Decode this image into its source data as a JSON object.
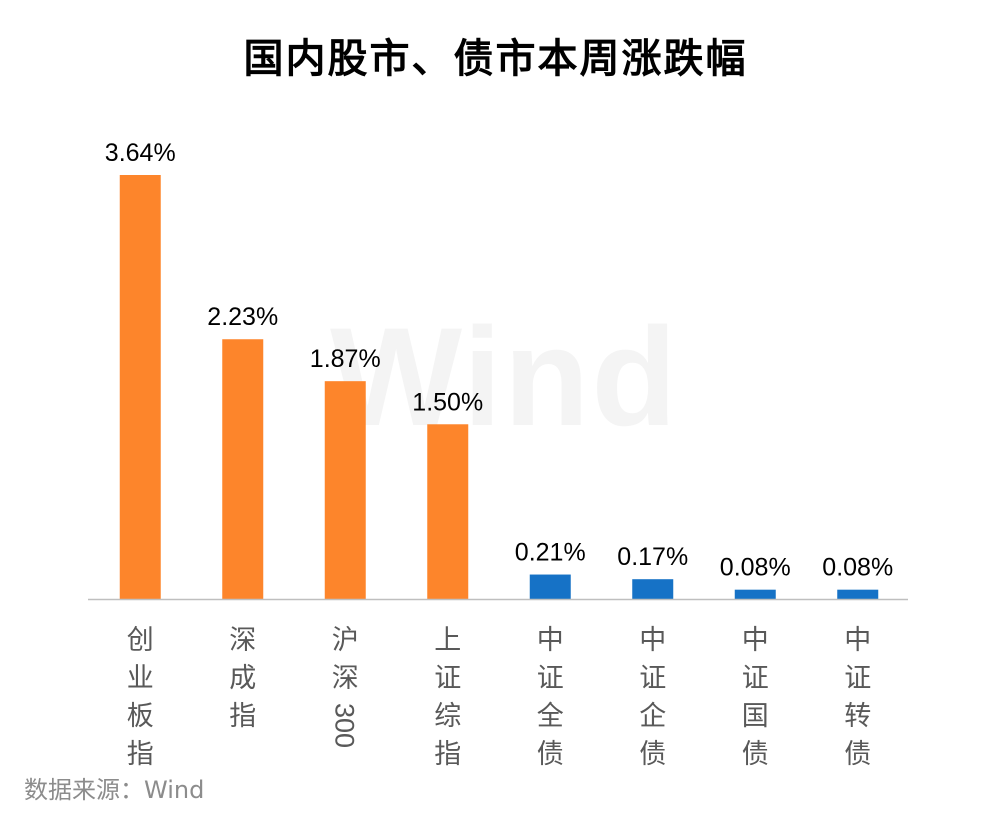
{
  "chart_data": {
    "type": "bar",
    "title": "国内股市、债市本周涨跌幅",
    "categories": [
      "创业板指",
      "深成指",
      "沪深300",
      "上证综指",
      "中证全债",
      "中证企债",
      "中证国债",
      "中证转债"
    ],
    "values": [
      3.64,
      2.23,
      1.87,
      1.5,
      0.21,
      0.17,
      0.08,
      0.08
    ],
    "data_labels": [
      "3.64%",
      "2.23%",
      "1.87%",
      "1.50%",
      "0.21%",
      "0.17%",
      "0.08%",
      "0.08%"
    ],
    "groups": [
      "equity",
      "equity",
      "equity",
      "equity",
      "bond",
      "bond",
      "bond",
      "bond"
    ],
    "colors": {
      "equity": "#FD852B",
      "bond": "#1672C6",
      "axis": "#BFBFBF"
    },
    "ylim": [
      0,
      3.64
    ],
    "grid": false,
    "legend": "none",
    "xlabel": "",
    "ylabel": ""
  },
  "watermark": "Wind",
  "source_note": "数据来源：Wind"
}
